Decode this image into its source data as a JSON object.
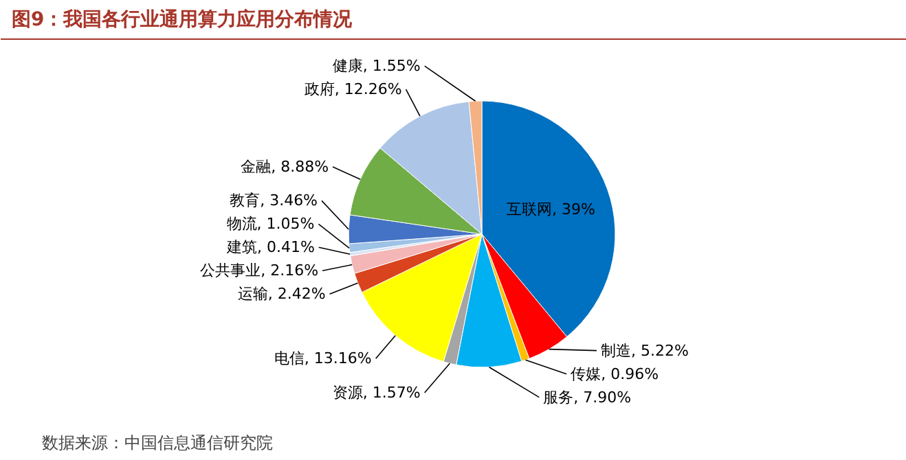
{
  "chart_data": {
    "type": "pie",
    "title": "图9：我国各行业通用算力应用分布情况",
    "categories": [
      "互联网",
      "制造",
      "传媒",
      "服务",
      "资源",
      "电信",
      "运输",
      "公共事业",
      "建筑",
      "物流",
      "教育",
      "金融",
      "政府",
      "健康"
    ],
    "values": [
      39,
      5.22,
      0.96,
      7.9,
      1.57,
      13.16,
      2.42,
      2.16,
      0.41,
      1.05,
      3.46,
      8.88,
      12.26,
      1.55
    ],
    "value_labels": [
      "39%",
      "5.22%",
      "0.96%",
      "7.90%",
      "1.57%",
      "13.16%",
      "2.42%",
      "2.16%",
      "0.41%",
      "1.05%",
      "3.46%",
      "8.88%",
      "12.26%",
      "1.55%"
    ],
    "colors": [
      "#0070c0",
      "#ff0000",
      "#ffc000",
      "#00b0f0",
      "#a5a5a5",
      "#ffff00",
      "#d9431e",
      "#f4b6b6",
      "#dae3f3",
      "#9dc3e6",
      "#4472c4",
      "#70ad47",
      "#adc5e7",
      "#f4b183"
    ],
    "annotations": [
      "数据来源：中国信息通信研究院"
    ]
  }
}
